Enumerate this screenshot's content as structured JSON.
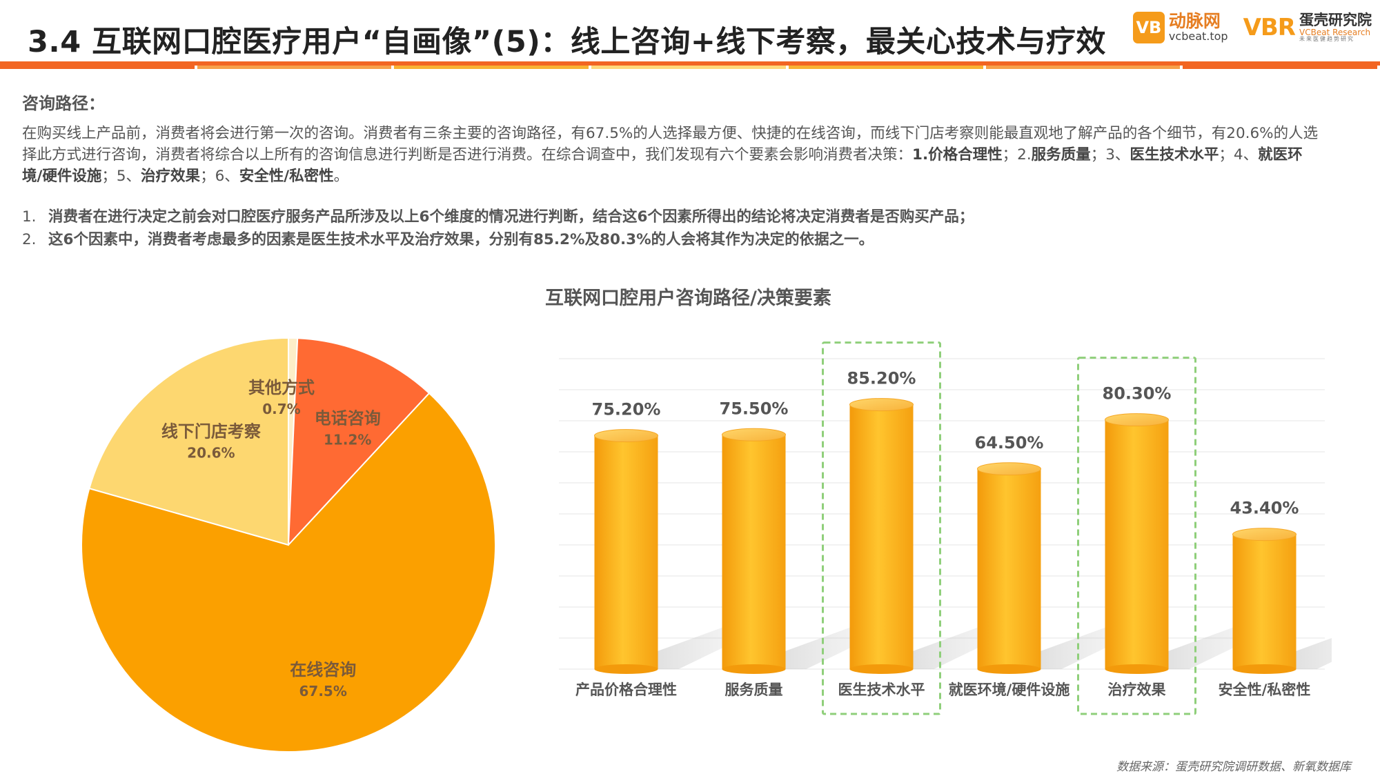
{
  "header": {
    "title": "3.4 互联网口腔医疗用户“自画像”(5)：线上咨询+线下考察，最关心技术与疗效",
    "logo_left_badge": "VB",
    "logo_left_cn": "动脉网",
    "logo_left_url": "vcbeat.top",
    "logo_right_mark": "VBR",
    "logo_right_cn": "蛋壳研究院",
    "logo_right_en": "VCBeat Research",
    "logo_right_sub": "未来医健趋势研究"
  },
  "colors": {
    "rule": "#f26522",
    "bands": [
      "#f26522",
      "#f7a04a",
      "#f9b233",
      "#ffd87a",
      "#f9b233",
      "#f7a04a",
      "#f26522"
    ],
    "accent_orange": "#f59b1a"
  },
  "body": {
    "section_head": "咨询路径：",
    "para_part1": "在购买线上产品前，消费者将会进行第一次的咨询。消费者有三条主要的咨询路径，有67.5%的人选择最方便、快捷的在线咨询，而线下门店考察则能最直观地了解产品的各个细节，有20.6%的人选择此方式进行咨询，消费者将综合以上所有的咨询信息进行判断是否进行消费。在综合调查中，我们发现有六个要素会影响消费者决策：",
    "para_part2": "1.价格合理性",
    "para_part3": "；2.",
    "para_part4": "服务质量",
    "para_part5": "；3、",
    "para_part6": "医生技术水平",
    "para_part7": "；4、",
    "para_part8": "就医环境/硬件设施",
    "para_part9": "；5、",
    "para_part10": "治疗效果",
    "para_part11": "；6、",
    "para_part12": "安全性/私密性",
    "para_part13": "。",
    "points": [
      {
        "num": "1.",
        "text": "消费者在进行决定之前会对口腔医疗服务产品所涉及以上6个维度的情况进行判断，结合这6个因素所得出的结论将决定消费者是否购买产品；"
      },
      {
        "num": "2.",
        "text": "这6个因素中，消费者考虑最多的因素是医生技术水平及治疗效果，分别有85.2%及80.3%的人会将其作为决定的依据之一。"
      }
    ]
  },
  "chart_title": "互联网口腔用户咨询路径/决策要素",
  "chart_data": [
    {
      "type": "pie",
      "title": "",
      "slices": [
        {
          "label": "其他方式",
          "value": 0.7,
          "display": "0.7%",
          "color": "#fdeec8"
        },
        {
          "label": "电话咨询",
          "value": 11.2,
          "display": "11.2%",
          "color": "#ff6a33"
        },
        {
          "label": "在线咨询",
          "value": 67.5,
          "display": "67.5%",
          "color": "#fba000"
        },
        {
          "label": "线下门店考察",
          "value": 20.6,
          "display": "20.6%",
          "color": "#fdd770"
        }
      ]
    },
    {
      "type": "bar",
      "title": "互联网口腔用户咨询路径/决策要素",
      "categories": [
        "产品价格合理性",
        "服务质量",
        "医生技术水平",
        "就医环境/硬件设施",
        "治疗效果",
        "安全性/私密性"
      ],
      "values": [
        75.2,
        75.5,
        85.2,
        64.5,
        80.3,
        43.4
      ],
      "value_labels": [
        "75.20%",
        "75.50%",
        "85.20%",
        "64.50%",
        "80.30%",
        "43.40%"
      ],
      "highlighted": [
        "医生技术水平",
        "治疗效果"
      ],
      "ylim": [
        0,
        100
      ],
      "grid": true,
      "bar_color": "#fbaa14"
    }
  ],
  "footer": {
    "source": "数据来源：蛋壳研究院调研数据、新氧数据库"
  }
}
